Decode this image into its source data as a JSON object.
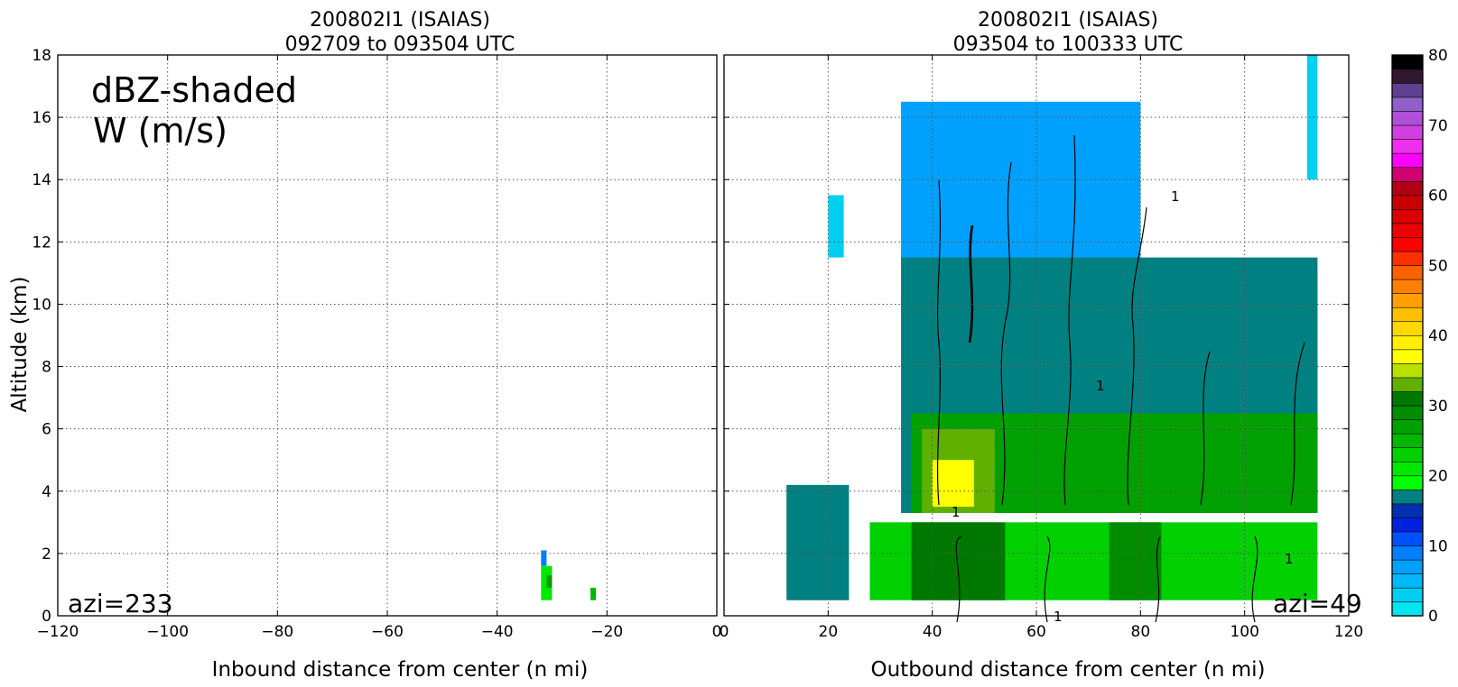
{
  "chart_data": [
    {
      "type": "heatmap",
      "title_line1": "200802I1 (ISAIAS)",
      "title_line2": "092709 to 093504 UTC",
      "xlabel": "Inbound distance from center (n mi)",
      "ylabel": "Altitude (km)",
      "xlim": [
        -120,
        0
      ],
      "ylim": [
        0,
        18
      ],
      "xticks": [
        -120,
        -100,
        -80,
        -60,
        -40,
        -20,
        0
      ],
      "yticks": [
        0,
        2,
        4,
        6,
        8,
        10,
        12,
        14,
        16,
        18
      ],
      "grid": true,
      "annotations": [
        "dBZ-shaded",
        "W (m/s)"
      ],
      "azimuth_label": "azi=233",
      "echo_patches": [
        {
          "x0": -32,
          "x1": -31,
          "y0": 1.6,
          "y1": 2.1,
          "dbz": 12
        },
        {
          "x0": -32,
          "x1": -30,
          "y0": 0.5,
          "y1": 1.6,
          "dbz": 26
        },
        {
          "x0": -31,
          "x1": -30,
          "y0": 0.9,
          "y1": 1.3,
          "dbz": 34
        },
        {
          "x0": -23,
          "x1": -22,
          "y0": 0.5,
          "y1": 0.9,
          "dbz": 30
        }
      ]
    },
    {
      "type": "heatmap",
      "title_line1": "200802I1 (ISAIAS)",
      "title_line2": "093504 to 100333 UTC",
      "xlabel": "Outbound distance from center (n mi)",
      "ylabel": "",
      "xlim": [
        0,
        120
      ],
      "ylim": [
        0,
        18
      ],
      "xticks": [
        0,
        20,
        40,
        60,
        80,
        100,
        120
      ],
      "yticks": [
        0,
        2,
        4,
        6,
        8,
        10,
        12,
        14,
        16,
        18
      ],
      "grid": true,
      "azimuth_label": "azi=49",
      "w_contour_label": "1",
      "echo_patches": [
        {
          "x0": 34,
          "x1": 80,
          "y0": 8,
          "y1": 16.5,
          "dbz": 8
        },
        {
          "x0": 80,
          "x1": 114,
          "y0": 4,
          "y1": 11,
          "dbz": 10
        },
        {
          "x0": 34,
          "x1": 114,
          "y0": 3.3,
          "y1": 11.5,
          "dbz": 20
        },
        {
          "x0": 36,
          "x1": 114,
          "y0": 3.3,
          "y1": 6.5,
          "dbz": 34
        },
        {
          "x0": 38,
          "x1": 52,
          "y0": 3.3,
          "y1": 6,
          "dbz": 40
        },
        {
          "x0": 40,
          "x1": 48,
          "y0": 3.5,
          "y1": 5,
          "dbz": 46
        },
        {
          "x0": 12,
          "x1": 24,
          "y0": 0.5,
          "y1": 4.2,
          "dbz": 22
        },
        {
          "x0": 28,
          "x1": 114,
          "y0": 0.5,
          "y1": 3,
          "dbz": 28
        },
        {
          "x0": 36,
          "x1": 54,
          "y0": 0.5,
          "y1": 3,
          "dbz": 38
        },
        {
          "x0": 74,
          "x1": 84,
          "y0": 0.5,
          "y1": 3,
          "dbz": 36
        },
        {
          "x0": 112,
          "x1": 114,
          "y0": 14,
          "y1": 18,
          "dbz": 4
        },
        {
          "x0": 20,
          "x1": 23,
          "y0": 11.5,
          "y1": 13.5,
          "dbz": 4
        }
      ]
    },
    {
      "type": "colorbar",
      "min": 0,
      "max": 80,
      "step": 2.5,
      "ticks": [
        0,
        10,
        20,
        30,
        40,
        50,
        60,
        70,
        80
      ],
      "colors": [
        "#00e5ee",
        "#00d0f0",
        "#00b8f5",
        "#00a0ff",
        "#0080ff",
        "#0050ff",
        "#0020e0",
        "#0030b0",
        "#008080",
        "#00ff00",
        "#00e800",
        "#00d000",
        "#00b800",
        "#00a000",
        "#008c00",
        "#007800",
        "#60b000",
        "#b8e000",
        "#ffff00",
        "#fff000",
        "#ffd800",
        "#ffc000",
        "#ffa000",
        "#ff8000",
        "#ff6000",
        "#ff3000",
        "#ff0000",
        "#ee0000",
        "#dd0000",
        "#c80000",
        "#b00018",
        "#d00070",
        "#ff00ff",
        "#ee30ee",
        "#d040e0",
        "#b050d8",
        "#9060c8",
        "#604090",
        "#301830",
        "#000000"
      ]
    }
  ]
}
